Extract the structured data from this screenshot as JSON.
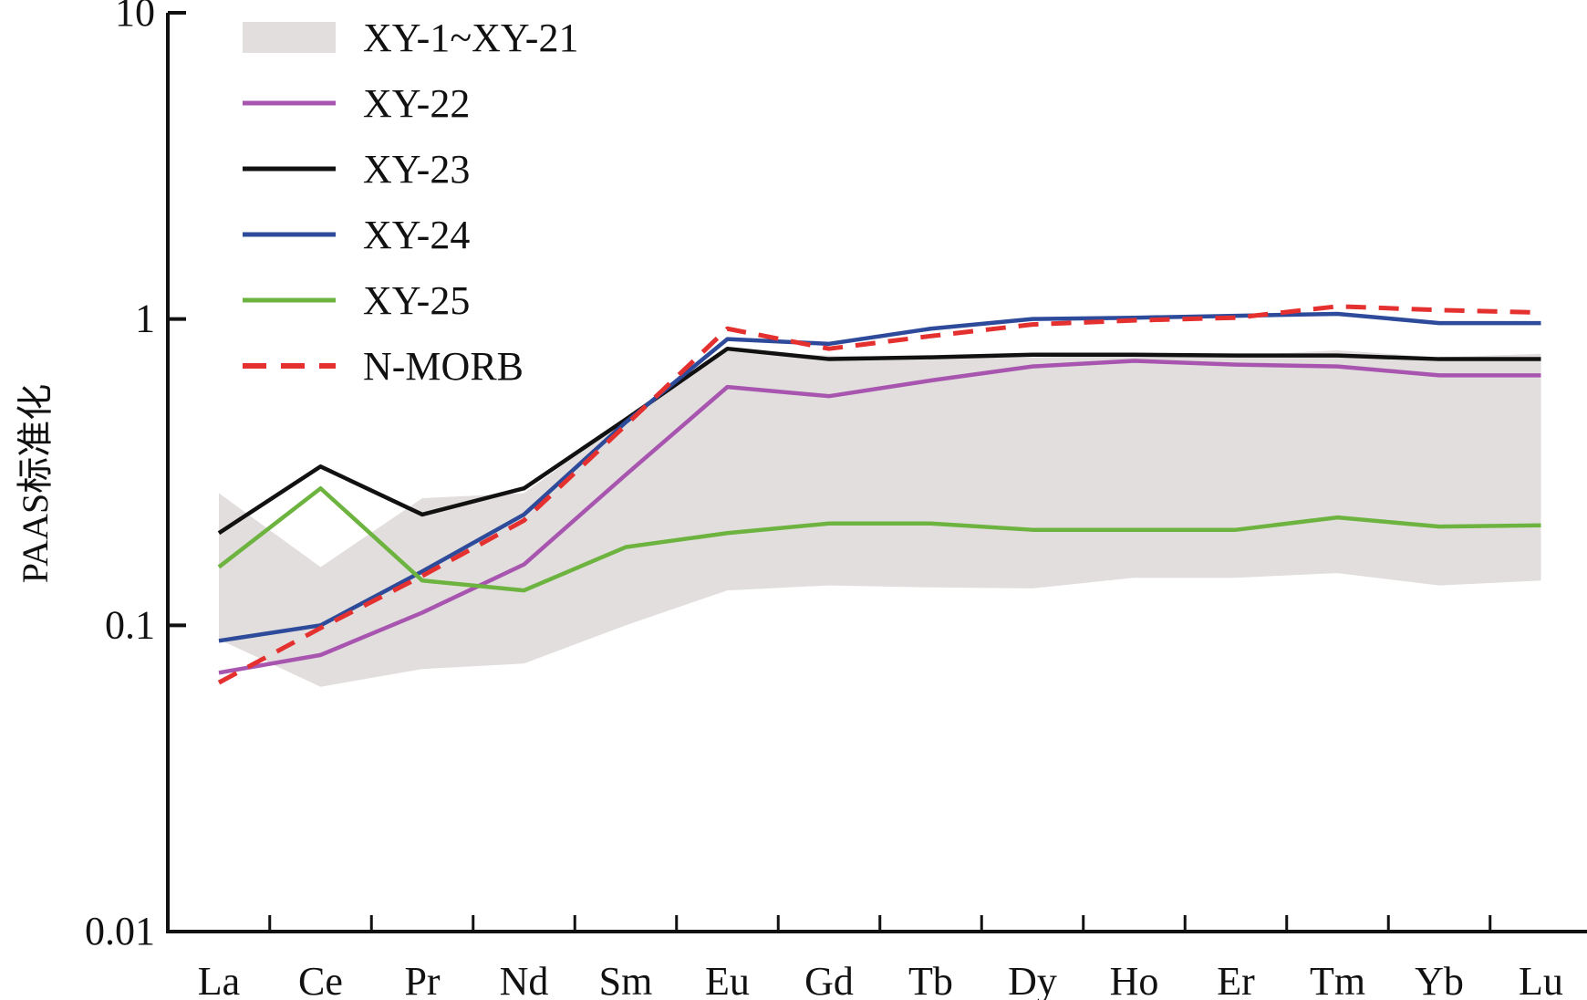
{
  "chart_data": {
    "type": "line",
    "title": "",
    "xlabel": "",
    "ylabel": "PAAS标准化",
    "yscale": "log",
    "ylim": [
      0.01,
      10
    ],
    "yticks": [
      {
        "value": 0.01,
        "label": "0.01"
      },
      {
        "value": 0.1,
        "label": "0.1"
      },
      {
        "value": 1,
        "label": "1"
      },
      {
        "value": 10,
        "label": "10"
      }
    ],
    "categories": [
      "La",
      "Ce",
      "Pr",
      "Nd",
      "Sm",
      "Eu",
      "Gd",
      "Tb",
      "Dy",
      "Ho",
      "Er",
      "Tm",
      "Yb",
      "Lu"
    ],
    "range_band": {
      "name": "XY-1~XY-21",
      "color": "#e2dedd",
      "upper": [
        0.27,
        0.155,
        0.26,
        0.27,
        0.47,
        0.79,
        0.76,
        0.75,
        0.75,
        0.76,
        0.76,
        0.79,
        0.75,
        0.77
      ],
      "lower": [
        0.09,
        0.063,
        0.072,
        0.075,
        0.1,
        0.13,
        0.135,
        0.133,
        0.132,
        0.143,
        0.143,
        0.148,
        0.135,
        0.14
      ]
    },
    "series": [
      {
        "name": "XY-22",
        "color": "#a855b0",
        "dash": false,
        "values": [
          0.07,
          0.08,
          0.11,
          0.158,
          0.31,
          0.6,
          0.56,
          0.63,
          0.7,
          0.73,
          0.71,
          0.7,
          0.655,
          0.655
        ]
      },
      {
        "name": "XY-23",
        "color": "#111111",
        "dash": false,
        "values": [
          0.2,
          0.33,
          0.23,
          0.28,
          0.47,
          0.8,
          0.74,
          0.75,
          0.765,
          0.765,
          0.76,
          0.76,
          0.74,
          0.74
        ]
      },
      {
        "name": "XY-24",
        "color": "#2e4a9a",
        "dash": false,
        "values": [
          0.089,
          0.1,
          0.15,
          0.23,
          0.46,
          0.86,
          0.83,
          0.93,
          1.0,
          1.01,
          1.025,
          1.04,
          0.97,
          0.97
        ]
      },
      {
        "name": "XY-25",
        "color": "#6db33f",
        "dash": false,
        "values": [
          0.155,
          0.28,
          0.14,
          0.13,
          0.18,
          0.2,
          0.215,
          0.215,
          0.205,
          0.205,
          0.205,
          0.225,
          0.21,
          0.212
        ]
      },
      {
        "name": "N-MORB",
        "color": "#e53030",
        "dash": true,
        "values": [
          0.065,
          0.098,
          0.145,
          0.22,
          0.45,
          0.93,
          0.8,
          0.88,
          0.96,
          0.99,
          1.01,
          1.1,
          1.07,
          1.05
        ]
      }
    ],
    "legend_position": "top-left",
    "grid": false
  }
}
